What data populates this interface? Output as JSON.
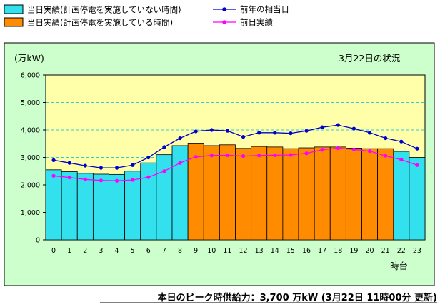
{
  "chart_data": {
    "type": "bar",
    "unit_label": "(万kW)",
    "date_label": "3月22日の状況",
    "xlabel": "時台",
    "categories": [
      "0",
      "1",
      "2",
      "3",
      "4",
      "5",
      "6",
      "7",
      "8",
      "9",
      "10",
      "11",
      "12",
      "13",
      "14",
      "15",
      "16",
      "17",
      "18",
      "19",
      "20",
      "21",
      "22",
      "23"
    ],
    "ylim": [
      0,
      6000
    ],
    "yticks": [
      "0",
      "1,000",
      "2,000",
      "3,000",
      "4,000",
      "5,000",
      "6,000"
    ],
    "series": [
      {
        "name": "当日実績(計画停電を実施していない時間)",
        "kind": "bar",
        "color": "#33e0ee",
        "values": [
          2550,
          2480,
          2420,
          2390,
          2380,
          2500,
          2800,
          3100,
          3430,
          null,
          null,
          null,
          null,
          null,
          null,
          null,
          null,
          null,
          null,
          null,
          null,
          null,
          3220,
          3000
        ]
      },
      {
        "name": "当日実績(計画停電を実施している時間)",
        "kind": "bar",
        "color": "#ff8c00",
        "values": [
          null,
          null,
          null,
          null,
          null,
          null,
          null,
          null,
          null,
          3520,
          3430,
          3460,
          3330,
          3400,
          3380,
          3320,
          3350,
          3380,
          3380,
          3340,
          3320,
          3320,
          null,
          null
        ]
      },
      {
        "name": "前年の相当日",
        "kind": "line",
        "color": "#0000cc",
        "values": [
          2900,
          2800,
          2700,
          2620,
          2620,
          2720,
          3000,
          3380,
          3700,
          3950,
          4000,
          3970,
          3750,
          3900,
          3900,
          3880,
          3970,
          4100,
          4180,
          4050,
          3900,
          3700,
          3580,
          3320
        ]
      },
      {
        "name": "前日実績",
        "kind": "line",
        "color": "#ff00ff",
        "values": [
          2330,
          2270,
          2200,
          2160,
          2150,
          2180,
          2280,
          2500,
          2800,
          3020,
          3070,
          3080,
          3050,
          3070,
          3080,
          3090,
          3150,
          3280,
          3340,
          3290,
          3230,
          3060,
          2920,
          2720
        ]
      }
    ],
    "grid": true,
    "legend_position": "top-left"
  },
  "footer": {
    "text": "本日のピーク時供給力：3,700 万kW (3月22日 11時00分 更新)"
  }
}
